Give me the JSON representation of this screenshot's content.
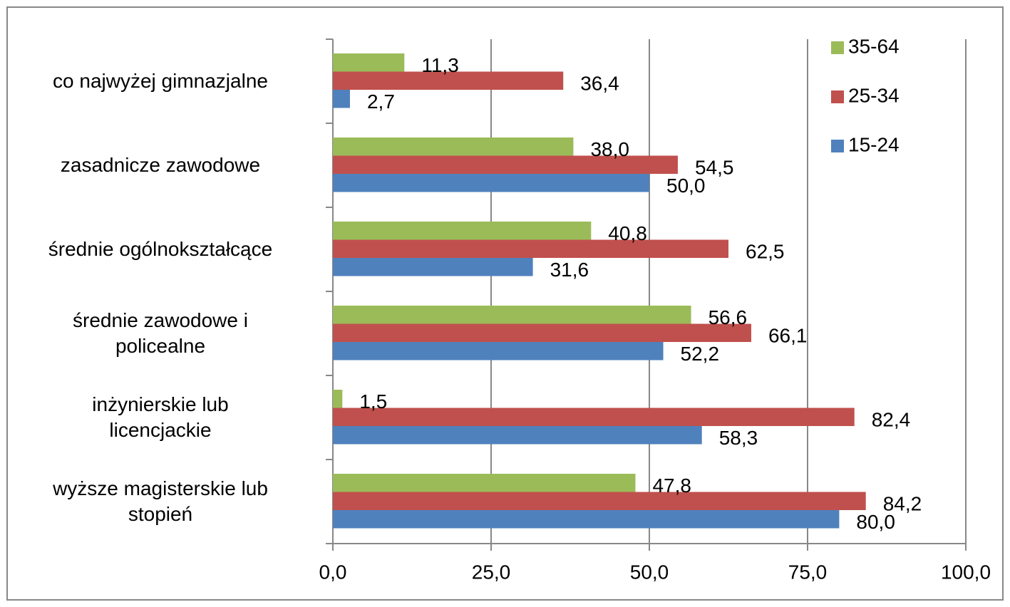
{
  "chart_data": {
    "type": "hbar",
    "categories": [
      "co najwyżej gimnazjalne",
      "zasadnicze zawodowe",
      "średnie ogólnokształcące",
      "średnie zawodowe i\npolicealne",
      "inżynierskie lub\nlicencjackie",
      "wyższe magisterskie lub\nstopień"
    ],
    "series": [
      {
        "name": "15-24",
        "color": "#4f81bd",
        "values": [
          2.7,
          50.0,
          31.6,
          52.2,
          58.3,
          80.0
        ],
        "value_labels": [
          "2,7",
          "50,0",
          "31,6",
          "52,2",
          "58,3",
          "80,0"
        ]
      },
      {
        "name": "25-34",
        "color": "#c0504d",
        "values": [
          36.4,
          54.5,
          62.5,
          66.1,
          82.4,
          84.2
        ],
        "value_labels": [
          "36,4",
          "54,5",
          "62,5",
          "66,1",
          "82,4",
          "84,2"
        ]
      },
      {
        "name": "35-64",
        "color": "#9bbb59",
        "values": [
          11.3,
          38.0,
          40.8,
          56.6,
          1.5,
          47.8
        ],
        "value_labels": [
          "11,3",
          "38,0",
          "40,8",
          "56,6",
          "1,5",
          "47,8"
        ]
      }
    ],
    "xlim": [
      0,
      100
    ],
    "xticks": [
      {
        "value": 0,
        "label": "0,0"
      },
      {
        "value": 25,
        "label": "25,0"
      },
      {
        "value": 50,
        "label": "50,0"
      },
      {
        "value": 75,
        "label": "75,0"
      },
      {
        "value": 100,
        "label": "100,0"
      }
    ],
    "grid": true,
    "legend": "top-right"
  }
}
